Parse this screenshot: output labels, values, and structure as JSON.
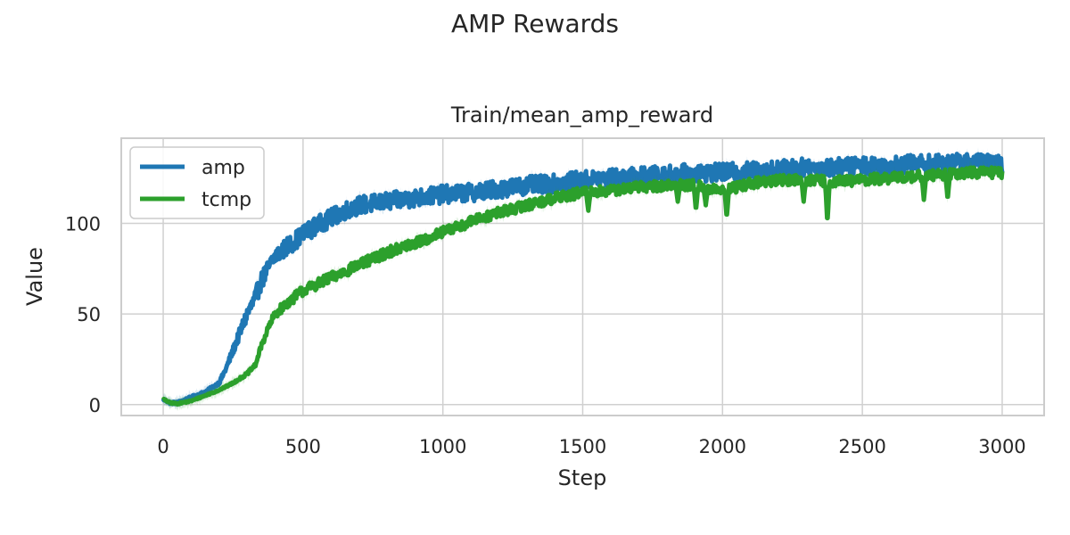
{
  "figure": {
    "suptitle": "AMP Rewards"
  },
  "chart_data": {
    "type": "line",
    "title": "Train/mean_amp_reward",
    "xlabel": "Step",
    "ylabel": "Value",
    "xlim": [
      -150,
      3150
    ],
    "ylim": [
      -6,
      147
    ],
    "xticks": [
      0,
      500,
      1000,
      1500,
      2000,
      2500,
      3000
    ],
    "yticks": [
      0,
      50,
      100
    ],
    "grid": true,
    "legend": "top-left",
    "series": [
      {
        "name": "amp",
        "color": "#1f77b4",
        "noise": 5,
        "points": [
          [
            0,
            3
          ],
          [
            25,
            1
          ],
          [
            50,
            1
          ],
          [
            100,
            4
          ],
          [
            150,
            7
          ],
          [
            200,
            12
          ],
          [
            225,
            20
          ],
          [
            250,
            30
          ],
          [
            275,
            40
          ],
          [
            300,
            50
          ],
          [
            325,
            57
          ],
          [
            350,
            68
          ],
          [
            375,
            75
          ],
          [
            400,
            82
          ],
          [
            450,
            88
          ],
          [
            500,
            94
          ],
          [
            550,
            99
          ],
          [
            600,
            103
          ],
          [
            650,
            107
          ],
          [
            700,
            110
          ],
          [
            800,
            112
          ],
          [
            900,
            114
          ],
          [
            1000,
            116
          ],
          [
            1100,
            117
          ],
          [
            1200,
            119
          ],
          [
            1300,
            121
          ],
          [
            1400,
            122
          ],
          [
            1500,
            124
          ],
          [
            1600,
            125
          ],
          [
            1700,
            126
          ],
          [
            1800,
            127
          ],
          [
            1900,
            128
          ],
          [
            2000,
            128
          ],
          [
            2100,
            129
          ],
          [
            2200,
            130
          ],
          [
            2300,
            131
          ],
          [
            2400,
            131
          ],
          [
            2500,
            132
          ],
          [
            2600,
            132
          ],
          [
            2700,
            133
          ],
          [
            2800,
            133
          ],
          [
            2900,
            134
          ],
          [
            3000,
            132
          ]
        ],
        "dips": []
      },
      {
        "name": "tcmp",
        "color": "#2ca02c",
        "noise": 3,
        "points": [
          [
            0,
            3
          ],
          [
            25,
            1
          ],
          [
            50,
            0.5
          ],
          [
            100,
            2
          ],
          [
            150,
            5
          ],
          [
            200,
            8
          ],
          [
            250,
            12
          ],
          [
            300,
            17
          ],
          [
            330,
            22
          ],
          [
            350,
            32
          ],
          [
            375,
            42
          ],
          [
            400,
            50
          ],
          [
            450,
            57
          ],
          [
            500,
            63
          ],
          [
            600,
            70
          ],
          [
            700,
            77
          ],
          [
            800,
            84
          ],
          [
            900,
            89
          ],
          [
            1000,
            95
          ],
          [
            1100,
            101
          ],
          [
            1200,
            106
          ],
          [
            1300,
            110
          ],
          [
            1400,
            114
          ],
          [
            1500,
            117
          ],
          [
            1600,
            118
          ],
          [
            1700,
            120
          ],
          [
            1800,
            121
          ],
          [
            1900,
            121
          ],
          [
            2000,
            118
          ],
          [
            2100,
            122
          ],
          [
            2200,
            124
          ],
          [
            2300,
            124
          ],
          [
            2400,
            123
          ],
          [
            2500,
            124
          ],
          [
            2600,
            125
          ],
          [
            2700,
            126
          ],
          [
            2800,
            127
          ],
          [
            2900,
            128
          ],
          [
            3000,
            128
          ]
        ],
        "dips": [
          [
            1520,
            107
          ],
          [
            1840,
            112
          ],
          [
            1905,
            107
          ],
          [
            1940,
            110
          ],
          [
            2015,
            103
          ],
          [
            2290,
            112
          ],
          [
            2375,
            100
          ],
          [
            2720,
            113
          ],
          [
            2805,
            113
          ]
        ]
      }
    ]
  }
}
